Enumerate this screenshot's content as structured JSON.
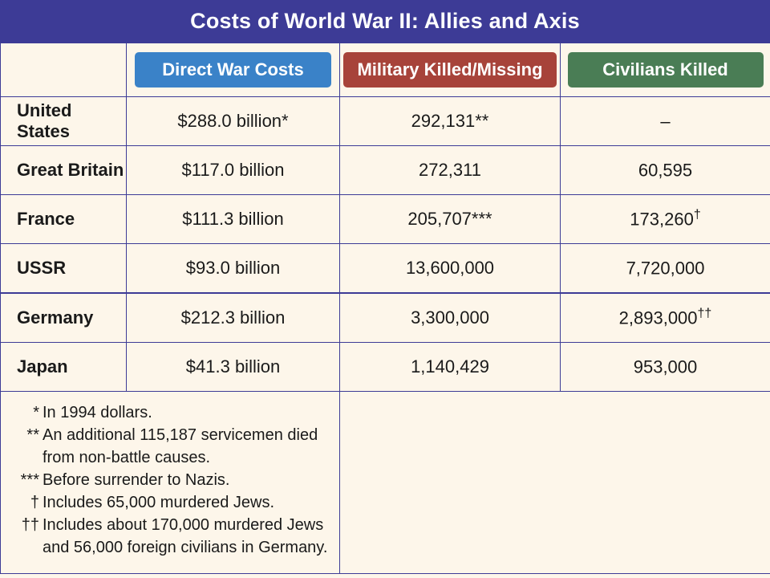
{
  "title": "Costs of World War II: Allies and Axis",
  "headers": [
    "Direct War Costs",
    "Military Killed/Missing",
    "Civilians Killed"
  ],
  "rows": [
    {
      "country": "United States",
      "cost": "$288.0 billion*",
      "military": "292,131**",
      "civilians": "–",
      "civ_mark": ""
    },
    {
      "country": "Great Britain",
      "cost": "$117.0 billion",
      "military": "272,311",
      "civilians": "60,595",
      "civ_mark": ""
    },
    {
      "country": "France",
      "cost": "$111.3 billion",
      "military": "205,707***",
      "civilians": "173,260",
      "civ_mark": "†"
    },
    {
      "country": "USSR",
      "cost": "$93.0 billion",
      "military": "13,600,000",
      "civilians": "7,720,000",
      "civ_mark": ""
    },
    {
      "country": "Germany",
      "cost": "$212.3 billion",
      "military": "3,300,000",
      "civilians": "2,893,000",
      "civ_mark": "††"
    },
    {
      "country": "Japan",
      "cost": "$41.3 billion",
      "military": "1,140,429",
      "civilians": "953,000",
      "civ_mark": ""
    }
  ],
  "footnotes": [
    {
      "mark": "*",
      "text": "In 1994 dollars."
    },
    {
      "mark": "**",
      "text": "An additional 115,187 servicemen died from non-battle causes."
    },
    {
      "mark": "***",
      "text": "Before surrender to Nazis."
    },
    {
      "mark": "†",
      "text": "Includes 65,000 murdered Jews."
    },
    {
      "mark": "††",
      "text": "Includes about 170,000 murdered Jews and 56,000 foreign civilians in Germany."
    }
  ],
  "colors": {
    "frame": "#3d3b96",
    "cost_header": "#3a82c8",
    "military_header": "#a7433a",
    "civilians_header": "#4a7d55",
    "background": "#fdf6ea"
  }
}
